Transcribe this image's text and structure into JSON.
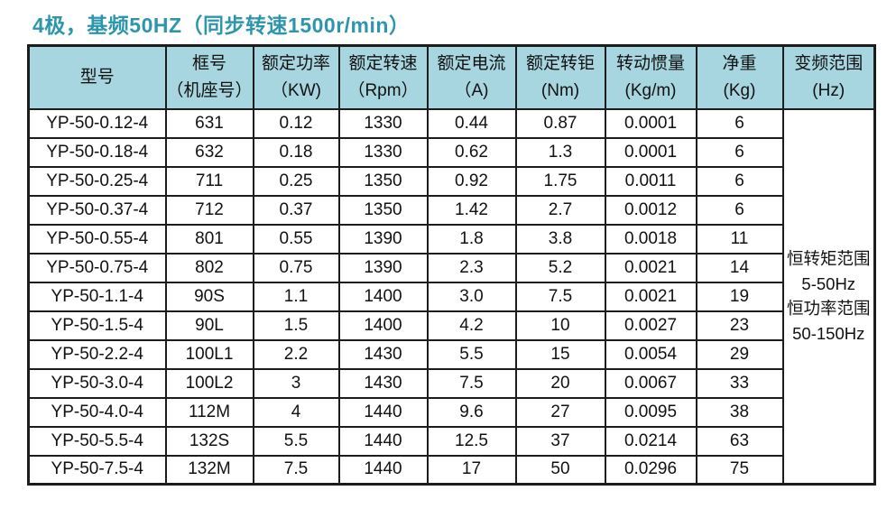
{
  "title": "4极，基频50HZ（同步转速1500r/min）",
  "colors": {
    "title": "#2e96ac",
    "header_bg": "#a8d6e0",
    "border": "#1c1c1c"
  },
  "table": {
    "headers": [
      {
        "line1": "型号",
        "line2": ""
      },
      {
        "line1": "框号",
        "line2": "（机座号）"
      },
      {
        "line1": "额定功率",
        "line2": "（KW)"
      },
      {
        "line1": "额定转速",
        "line2": "（Rpm）"
      },
      {
        "line1": "额定电流",
        "line2": "（A)"
      },
      {
        "line1": "额定转钜",
        "line2": "(Nm)"
      },
      {
        "line1": "转动惯量",
        "line2": "(Kg/m)"
      },
      {
        "line1": "净重",
        "line2": "(Kg)"
      },
      {
        "line1": "变频范围",
        "line2": "(Hz)"
      }
    ],
    "rows": [
      [
        "YP-50-0.12-4",
        "631",
        "0.12",
        "1330",
        "0.44",
        "0.87",
        "0.0001",
        "6"
      ],
      [
        "YP-50-0.18-4",
        "632",
        "0.18",
        "1330",
        "0.62",
        "1.3",
        "0.0001",
        "6"
      ],
      [
        "YP-50-0.25-4",
        "711",
        "0.25",
        "1350",
        "0.92",
        "1.75",
        "0.0011",
        "6"
      ],
      [
        "YP-50-0.37-4",
        "712",
        "0.37",
        "1350",
        "1.42",
        "2.7",
        "0.0012",
        "6"
      ],
      [
        "YP-50-0.55-4",
        "801",
        "0.55",
        "1390",
        "1.8",
        "3.8",
        "0.0018",
        "11"
      ],
      [
        "YP-50-0.75-4",
        "802",
        "0.75",
        "1390",
        "2.3",
        "5.2",
        "0.0021",
        "14"
      ],
      [
        "YP-50-1.1-4",
        "90S",
        "1.1",
        "1400",
        "3.0",
        "7.5",
        "0.0021",
        "19"
      ],
      [
        "YP-50-1.5-4",
        "90L",
        "1.5",
        "1400",
        "4.2",
        "10",
        "0.0027",
        "23"
      ],
      [
        "YP-50-2.2-4",
        "100L1",
        "2.2",
        "1430",
        "5.5",
        "15",
        "0.0054",
        "29"
      ],
      [
        "YP-50-3.0-4",
        "100L2",
        "3",
        "1430",
        "7.5",
        "20",
        "0.0067",
        "33"
      ],
      [
        "YP-50-4.0-4",
        "112M",
        "4",
        "1440",
        "9.6",
        "27",
        "0.0095",
        "38"
      ],
      [
        "YP-50-5.5-4",
        "132S",
        "5.5",
        "1440",
        "12.5",
        "37",
        "0.0214",
        "63"
      ],
      [
        "YP-50-7.5-4",
        "132M",
        "7.5",
        "1440",
        "17",
        "50",
        "0.0296",
        "75"
      ]
    ],
    "freq_range_lines": [
      "恒转矩范围",
      "5-50Hz",
      "恒功率范围",
      "50-150Hz"
    ]
  }
}
